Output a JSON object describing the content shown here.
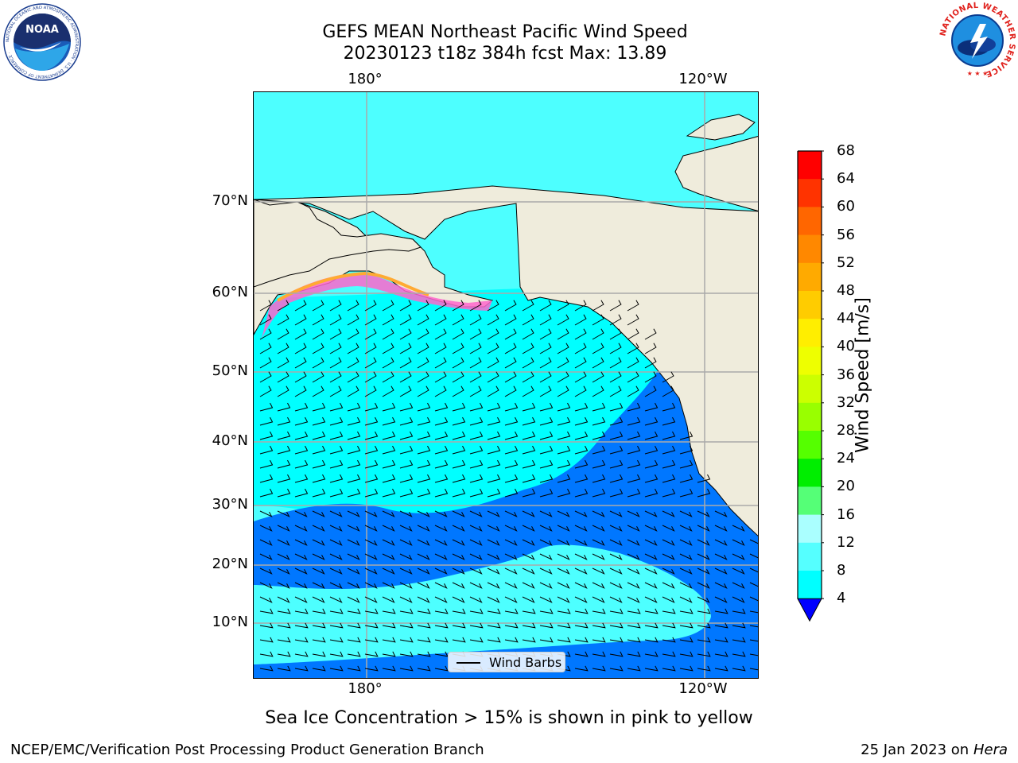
{
  "title": {
    "line1": "GEFS MEAN Northeast Pacific Wind Speed",
    "line2": "20230123 t18z 384h fcst   Max: 13.89"
  },
  "map": {
    "lon_labels_top": [
      "180°",
      "120°W"
    ],
    "lon_labels_bottom": [
      "180°",
      "120°W"
    ],
    "lat_labels": [
      "70°N",
      "60°N",
      "50°N",
      "40°N",
      "30°N",
      "20°N",
      "10°N"
    ],
    "legend_label": "Wind Barbs",
    "colors": {
      "land": "#efecdc",
      "ocean_dark": "#0077ff",
      "ocean_cyan": "#00ffff",
      "ocean_light": "#4dffff",
      "ice_pink": "#ff33cc",
      "ice_orange": "#ffaa33",
      "gridline": "#aaaaaa"
    }
  },
  "colorbar": {
    "label": "Wind Speed [m/s]",
    "ticks": [
      "68",
      "64",
      "60",
      "56",
      "52",
      "48",
      "44",
      "40",
      "36",
      "32",
      "28",
      "24",
      "20",
      "16",
      "12",
      "8",
      "4"
    ],
    "colors_top_to_bottom": [
      "#ff0000",
      "#ff3300",
      "#ff6600",
      "#ff8800",
      "#ffaa00",
      "#ffcc00",
      "#ffee00",
      "#eeff00",
      "#ccff00",
      "#99ff00",
      "#55ff00",
      "#00ee00",
      "#55ff77",
      "#aaffff",
      "#55ffff",
      "#00ffff",
      "#0077ff"
    ],
    "extend_color": "#0000ff"
  },
  "note": "Sea Ice Concentration > 15% is shown in pink to yellow",
  "footer": {
    "left": "NCEP/EMC/Verification Post Processing Product Generation Branch",
    "right_date": "25 Jan 2023 on ",
    "right_host": "Hera"
  },
  "logos": {
    "left": "NOAA",
    "left_ring": "NATIONAL OCEANIC AND ATMOSPHERIC ADMINISTRATION · U.S. DEPARTMENT OF COMMERCE ·",
    "right_ring": "NATIONAL WEATHER SERVICE"
  }
}
